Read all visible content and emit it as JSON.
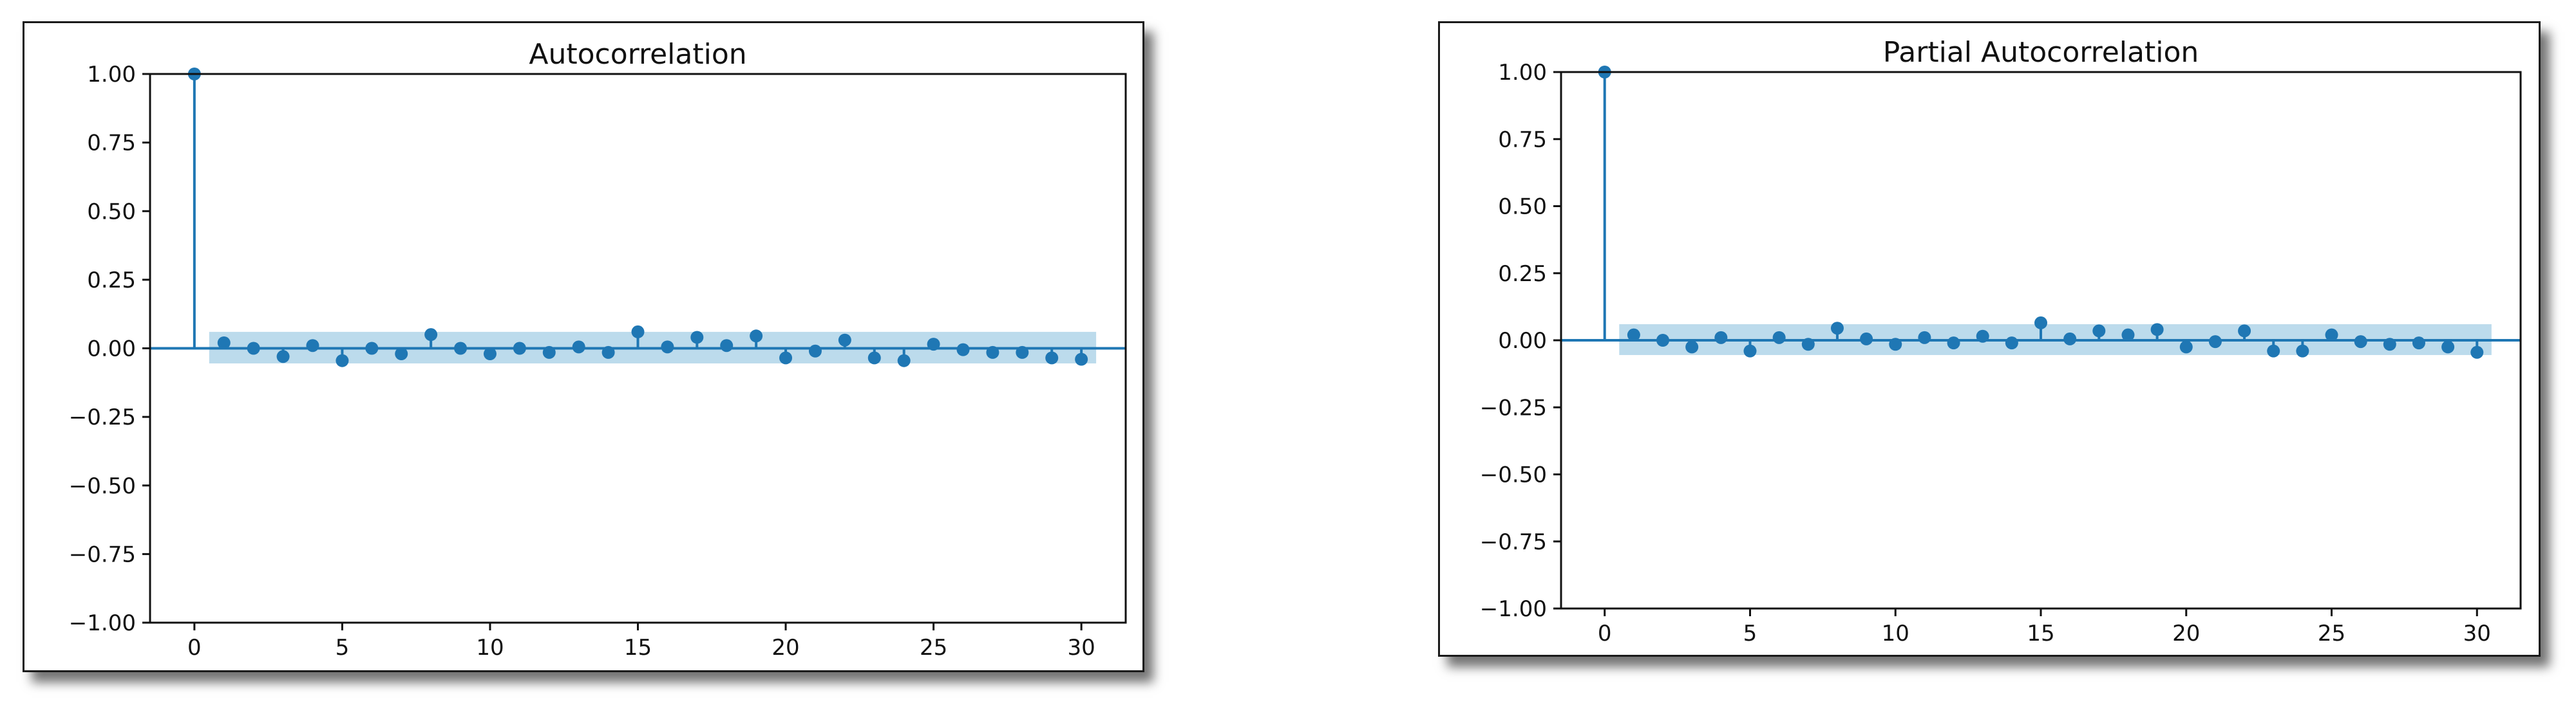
{
  "chart_data": [
    {
      "type": "stem",
      "title": "Autocorrelation",
      "xlabel": "",
      "ylabel": "",
      "xlim": [
        -1.5,
        31.5
      ],
      "ylim": [
        -1.0,
        1.0
      ],
      "xticks": [
        0,
        5,
        10,
        15,
        20,
        25,
        30
      ],
      "xtick_labels": [
        "0",
        "5",
        "10",
        "15",
        "20",
        "25",
        "30"
      ],
      "yticks": [
        1.0,
        0.75,
        0.5,
        0.25,
        0.0,
        -0.25,
        -0.5,
        -0.75,
        -1.0
      ],
      "ytick_labels": [
        "1.00",
        "0.75",
        "0.50",
        "0.25",
        "0.00",
        "−0.25",
        "−0.50",
        "−0.75",
        "−1.00"
      ],
      "confidence_band": {
        "from_lag": 0.5,
        "to_lag": 30.5,
        "lower": -0.055,
        "upper": 0.06
      },
      "color": "#1f77b4",
      "band_color": "#a6cfe6",
      "grid": false,
      "lags": [
        0,
        1,
        2,
        3,
        4,
        5,
        6,
        7,
        8,
        9,
        10,
        11,
        12,
        13,
        14,
        15,
        16,
        17,
        18,
        19,
        20,
        21,
        22,
        23,
        24,
        25,
        26,
        27,
        28,
        29,
        30
      ],
      "values": [
        1.0,
        0.02,
        0.0,
        -0.03,
        0.01,
        -0.045,
        0.0,
        -0.02,
        0.05,
        0.0,
        -0.02,
        0.0,
        -0.015,
        0.005,
        -0.015,
        0.06,
        0.005,
        0.04,
        0.01,
        0.045,
        -0.035,
        -0.01,
        0.03,
        -0.035,
        -0.045,
        0.015,
        -0.005,
        -0.015,
        -0.015,
        -0.035,
        -0.04
      ]
    },
    {
      "type": "stem",
      "title": "Partial Autocorrelation",
      "xlabel": "",
      "ylabel": "",
      "xlim": [
        -1.5,
        31.5
      ],
      "ylim": [
        -1.0,
        1.0
      ],
      "xticks": [
        0,
        5,
        10,
        15,
        20,
        25,
        30
      ],
      "xtick_labels": [
        "0",
        "5",
        "10",
        "15",
        "20",
        "25",
        "30"
      ],
      "yticks": [
        1.0,
        0.75,
        0.5,
        0.25,
        0.0,
        -0.25,
        -0.5,
        -0.75,
        -1.0
      ],
      "ytick_labels": [
        "1.00",
        "0.75",
        "0.50",
        "0.25",
        "0.00",
        "−0.25",
        "−0.50",
        "−0.75",
        "−1.00"
      ],
      "confidence_band": {
        "from_lag": 0.5,
        "to_lag": 30.5,
        "lower": -0.055,
        "upper": 0.06
      },
      "color": "#1f77b4",
      "band_color": "#a6cfe6",
      "grid": false,
      "lags": [
        0,
        1,
        2,
        3,
        4,
        5,
        6,
        7,
        8,
        9,
        10,
        11,
        12,
        13,
        14,
        15,
        16,
        17,
        18,
        19,
        20,
        21,
        22,
        23,
        24,
        25,
        26,
        27,
        28,
        29,
        30
      ],
      "values": [
        1.0,
        0.02,
        0.0,
        -0.025,
        0.01,
        -0.04,
        0.01,
        -0.015,
        0.045,
        0.005,
        -0.015,
        0.01,
        -0.01,
        0.015,
        -0.01,
        0.065,
        0.005,
        0.035,
        0.02,
        0.04,
        -0.025,
        -0.005,
        0.035,
        -0.04,
        -0.04,
        0.02,
        -0.005,
        -0.015,
        -0.01,
        -0.025,
        -0.045
      ]
    }
  ]
}
